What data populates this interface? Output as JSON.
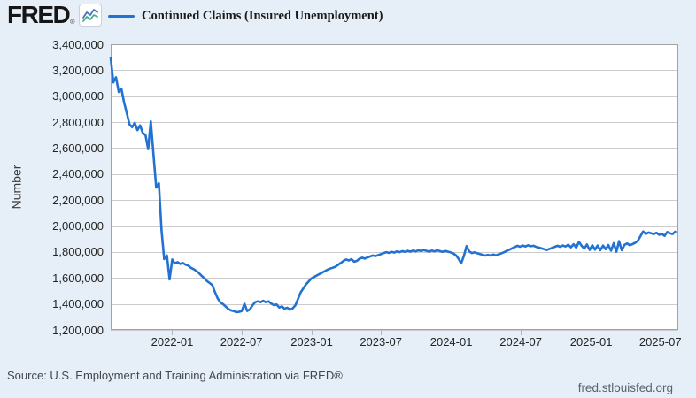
{
  "header": {
    "logo_text": "FRED",
    "logo_mark": "®",
    "legend": {
      "label": "Continued Claims (Insured Unemployment)",
      "line_color": "#2272d2"
    }
  },
  "footer": {
    "source": "Source: U.S. Employment and Training Administration via FRED®",
    "site": "fred.stlouisfed.org"
  },
  "chart_data": {
    "type": "line",
    "title": "Continued Claims (Insured Unemployment)",
    "xlabel": "",
    "ylabel": "Number",
    "ylim": [
      1200000,
      3400000
    ],
    "y_tick_labels": [
      "3,400,000",
      "3,200,000",
      "3,000,000",
      "2,800,000",
      "2,600,000",
      "2,400,000",
      "2,200,000",
      "2,000,000",
      "1,800,000",
      "1,600,000",
      "1,400,000",
      "1,200,000"
    ],
    "x_tick_labels": [
      "2022-01",
      "2022-07",
      "2023-01",
      "2023-07",
      "2024-01",
      "2024-07",
      "2025-01",
      "2025-07"
    ],
    "x_domain": [
      "2021-07-24",
      "2025-08-17"
    ],
    "grid": "horizontal-only",
    "legend_position": "top-left",
    "line_color": "#2272d2",
    "plot_bg": "#ffffff",
    "grid_color": "#cccccc",
    "border_color": "#a2a2a2",
    "tick_color": "#aab8c8",
    "series": [
      {
        "name": "Continued Claims (Insured Unemployment)",
        "frequency": "weekly",
        "start_date": "2021-07-24",
        "interval_days": 7,
        "values": [
          3296000,
          3106000,
          3145000,
          3032000,
          3056000,
          2952000,
          2872000,
          2783000,
          2762000,
          2794000,
          2738000,
          2775000,
          2716000,
          2700000,
          2592000,
          2806000,
          2552000,
          2296000,
          2330000,
          1968000,
          1745000,
          1773000,
          1588000,
          1742000,
          1712000,
          1722000,
          1708000,
          1715000,
          1702000,
          1695000,
          1678000,
          1668000,
          1654000,
          1637000,
          1616000,
          1598000,
          1576000,
          1561000,
          1545000,
          1490000,
          1442000,
          1412000,
          1398000,
          1380000,
          1361000,
          1350000,
          1345000,
          1336000,
          1339000,
          1346000,
          1401000,
          1346000,
          1357000,
          1389000,
          1413000,
          1420000,
          1413000,
          1424000,
          1413000,
          1420000,
          1402000,
          1391000,
          1396000,
          1372000,
          1381000,
          1363000,
          1371000,
          1355000,
          1366000,
          1388000,
          1438000,
          1488000,
          1520000,
          1551000,
          1573000,
          1596000,
          1607000,
          1619000,
          1630000,
          1641000,
          1652000,
          1663000,
          1672000,
          1679000,
          1686000,
          1701000,
          1715000,
          1731000,
          1742000,
          1735000,
          1744000,
          1725000,
          1731000,
          1748000,
          1756000,
          1749000,
          1758000,
          1766000,
          1773000,
          1768000,
          1776000,
          1784000,
          1792000,
          1799000,
          1793000,
          1801000,
          1795000,
          1805000,
          1799000,
          1807000,
          1801000,
          1809000,
          1803000,
          1811000,
          1805000,
          1813000,
          1807000,
          1815000,
          1809000,
          1803000,
          1811000,
          1805000,
          1813000,
          1807000,
          1801000,
          1809000,
          1803000,
          1797000,
          1789000,
          1775000,
          1748000,
          1712000,
          1768000,
          1846000,
          1804000,
          1792000,
          1798000,
          1790000,
          1784000,
          1778000,
          1772000,
          1778000,
          1772000,
          1780000,
          1774000,
          1782000,
          1790000,
          1798000,
          1808000,
          1818000,
          1828000,
          1838000,
          1848000,
          1840000,
          1850000,
          1842000,
          1852000,
          1844000,
          1848000,
          1840000,
          1834000,
          1828000,
          1822000,
          1816000,
          1824000,
          1832000,
          1840000,
          1848000,
          1840000,
          1850000,
          1842000,
          1856000,
          1836000,
          1860000,
          1834000,
          1878000,
          1848000,
          1826000,
          1858000,
          1816000,
          1852000,
          1818000,
          1850000,
          1814000,
          1850000,
          1822000,
          1854000,
          1810000,
          1868000,
          1802000,
          1884000,
          1814000,
          1854000,
          1866000,
          1852000,
          1860000,
          1870000,
          1886000,
          1922000,
          1958000,
          1938000,
          1950000,
          1944000,
          1938000,
          1948000,
          1932000,
          1940000,
          1924000,
          1954000,
          1944000,
          1938000,
          1956000
        ]
      }
    ]
  }
}
